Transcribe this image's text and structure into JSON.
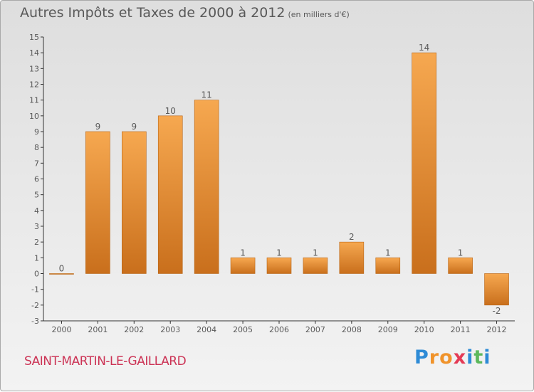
{
  "title": "Autres Impôts et Taxes de 2000 à 2012",
  "unit_note": "(en milliers d'€)",
  "place": "SAINT-MARTIN-LE-GAILLARD",
  "brand": {
    "letters": [
      "P",
      "r",
      "o",
      "x",
      "i",
      "t",
      "i"
    ],
    "colors": [
      "#2e8bd6",
      "#f0932b",
      "#f0932b",
      "#e43a55",
      "#2e8bd6",
      "#5cb85c",
      "#2e8bd6"
    ]
  },
  "colors": {
    "bar_light": "#f6a850",
    "bar_dark": "#c96f1c",
    "text": "#595959",
    "place": "#cc3355"
  },
  "chart_data": {
    "type": "bar",
    "categories": [
      "2000",
      "2001",
      "2002",
      "2003",
      "2004",
      "2005",
      "2006",
      "2007",
      "2008",
      "2009",
      "2010",
      "2011",
      "2012"
    ],
    "values": [
      0,
      9,
      9,
      10,
      11,
      1,
      1,
      1,
      2,
      1,
      14,
      1,
      -2
    ],
    "value_labels": [
      "0",
      "9",
      "9",
      "10",
      "11",
      "1",
      "1",
      "1",
      "2",
      "1",
      "14",
      "1",
      "-2"
    ],
    "ylim": [
      -3,
      15
    ],
    "yticks": [
      "-3",
      "-2",
      "-1",
      "0",
      "1",
      "2",
      "3",
      "4",
      "5",
      "6",
      "7",
      "8",
      "9",
      "10",
      "11",
      "12",
      "13",
      "14",
      "15"
    ],
    "grid": false,
    "legend": "none"
  }
}
